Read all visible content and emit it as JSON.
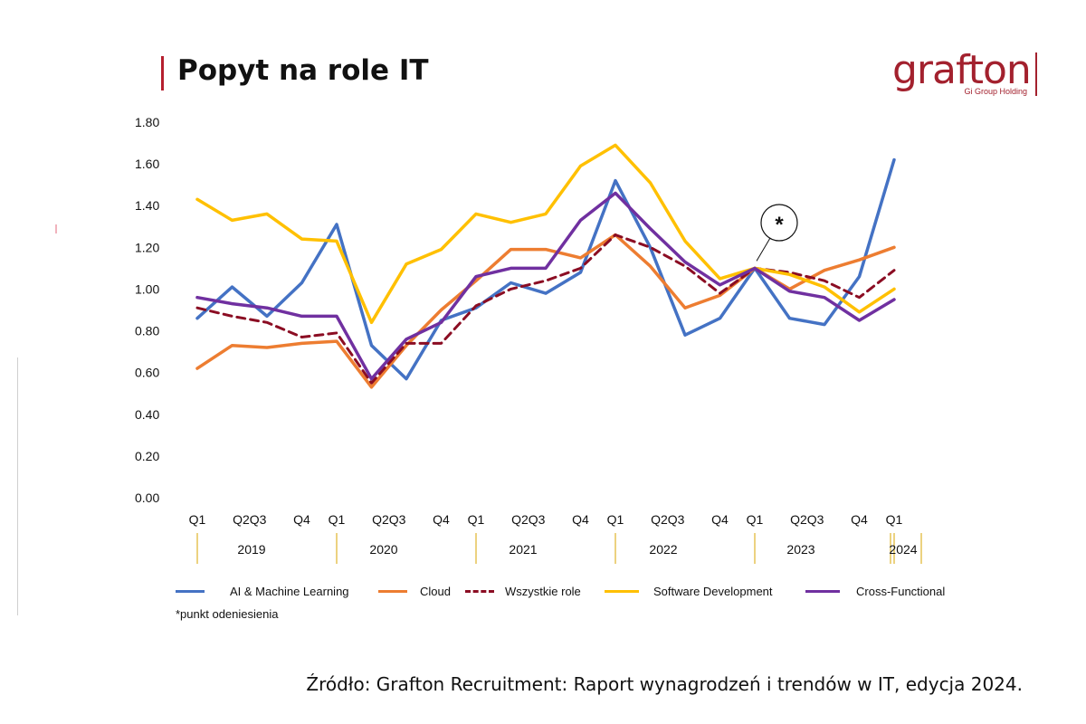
{
  "header": {
    "title": "Popyt na role IT"
  },
  "logo": {
    "word": "grafton",
    "sub": "Gi Group Holding",
    "color": "#a3212e"
  },
  "chart_data": {
    "type": "line",
    "title": "Popyt na role IT",
    "ylim": [
      0,
      1.8
    ],
    "yticks": [
      "0.00",
      "0.20",
      "0.40",
      "0.60",
      "0.80",
      "1.00",
      "1.20",
      "1.40",
      "1.60",
      "1.80"
    ],
    "categories": [
      "2019 Q1",
      "2019 Q2",
      "2019 Q3",
      "2019 Q4",
      "2020 Q1",
      "2020 Q2",
      "2020 Q3",
      "2020 Q4",
      "2021 Q1",
      "2021 Q2",
      "2021 Q3",
      "2021 Q4",
      "2022 Q1",
      "2022 Q2",
      "2022 Q3",
      "2022 Q4",
      "2023 Q1",
      "2023 Q2",
      "2023 Q3",
      "2023 Q4",
      "2024 Q1"
    ],
    "quarter_labels": [
      "Q1",
      "Q2Q3",
      "Q4",
      "Q1",
      "Q2Q3",
      "Q4",
      "Q1",
      "Q2Q3",
      "Q4",
      "Q1",
      "Q2Q3",
      "Q4",
      "Q1",
      "Q2Q3",
      "Q4",
      "Q1"
    ],
    "years": [
      "2019",
      "2020",
      "2021",
      "2022",
      "2023",
      "2024"
    ],
    "series": [
      {
        "name": "AI & Machine Learning",
        "color": "#4472c4",
        "style": "solid",
        "values": [
          0.86,
          1.01,
          0.87,
          1.03,
          1.31,
          0.73,
          0.57,
          0.85,
          0.91,
          1.03,
          0.98,
          1.08,
          1.52,
          1.2,
          0.78,
          0.86,
          1.1,
          0.86,
          0.83,
          1.06,
          1.62
        ]
      },
      {
        "name": "Cloud",
        "color": "#ed7d31",
        "style": "solid",
        "values": [
          0.62,
          0.73,
          0.72,
          0.74,
          0.75,
          0.53,
          0.73,
          0.9,
          1.04,
          1.19,
          1.19,
          1.15,
          1.26,
          1.11,
          0.91,
          0.97,
          1.1,
          1.0,
          1.09,
          1.14,
          1.2
        ]
      },
      {
        "name": "Wszystkie role",
        "color": "#8b0d23",
        "style": "dashed",
        "values": [
          0.91,
          0.87,
          0.84,
          0.77,
          0.79,
          0.55,
          0.74,
          0.74,
          0.92,
          1.0,
          1.04,
          1.1,
          1.26,
          1.2,
          1.11,
          0.98,
          1.1,
          1.08,
          1.04,
          0.96,
          1.09
        ]
      },
      {
        "name": "Software Development",
        "color": "#ffc000",
        "style": "solid",
        "values": [
          1.43,
          1.33,
          1.36,
          1.24,
          1.23,
          0.84,
          1.12,
          1.19,
          1.36,
          1.32,
          1.36,
          1.59,
          1.69,
          1.51,
          1.23,
          1.05,
          1.1,
          1.07,
          1.01,
          0.89,
          1.0
        ]
      },
      {
        "name": "Cross-Functional",
        "color": "#7030a0",
        "style": "solid",
        "values": [
          0.96,
          0.93,
          0.91,
          0.87,
          0.87,
          0.57,
          0.76,
          0.84,
          1.06,
          1.1,
          1.1,
          1.33,
          1.46,
          1.29,
          1.13,
          1.02,
          1.1,
          0.99,
          0.96,
          0.85,
          0.95
        ]
      }
    ],
    "annotation": {
      "label": "*",
      "at": "2023 Q1"
    },
    "grid": false,
    "legend_position": "bottom"
  },
  "footnote": "*punkt odeniesienia",
  "source": "Źródło: Grafton Recruitment: Raport wynagrodzeń i trendów w IT, edycja 2024."
}
